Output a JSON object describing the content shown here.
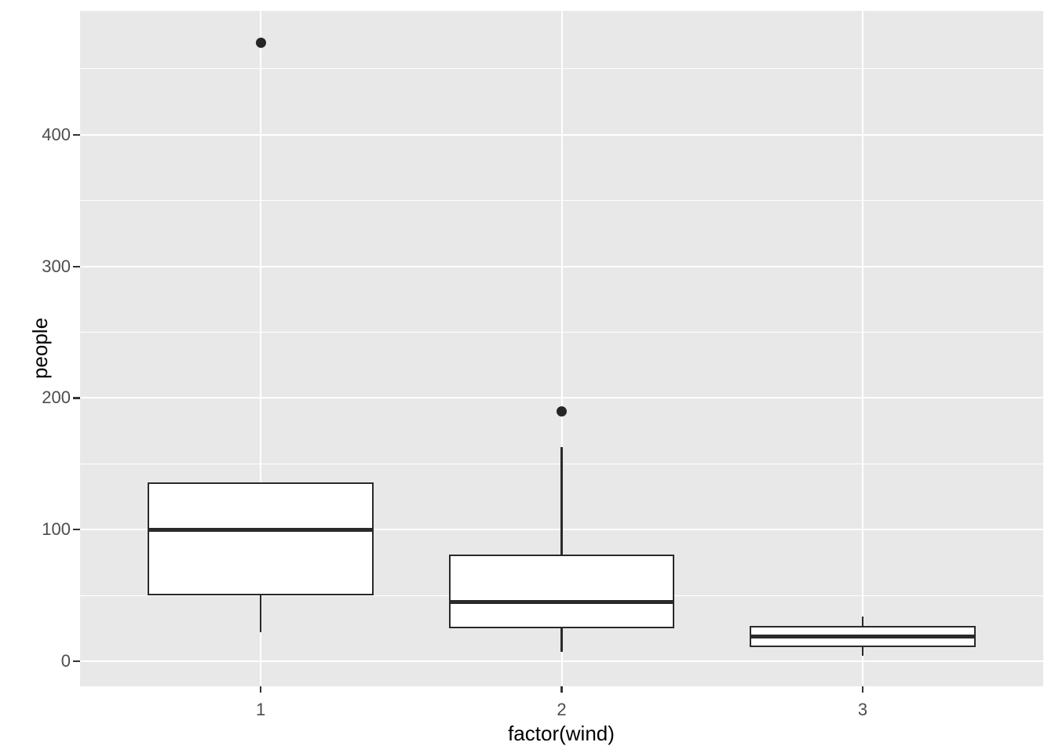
{
  "figure": {
    "background": "#FFFFFF",
    "panel_background": "#E8E8E8",
    "grid_color": "#FFFFFF",
    "box_border_color": "#2A2A2A",
    "box_fill_color": "#FFFFFF",
    "outlier_color": "#252525",
    "tick_mark_color": "#333333",
    "tick_label_color": "#4D4D4D",
    "axis_title_color": "#000000"
  },
  "chart_data": {
    "type": "boxplot",
    "title": "",
    "xlabel": "factor(wind)",
    "ylabel": "people",
    "categories": [
      "1",
      "2",
      "3"
    ],
    "y_major_ticks": [
      0,
      100,
      200,
      300,
      400
    ],
    "y_minor_gridlines": [
      50,
      150,
      250,
      350,
      450
    ],
    "ylim": [
      -19,
      494
    ],
    "grid": true,
    "legend": false,
    "series": [
      {
        "category": "1",
        "whisker_low": 22,
        "q1": 50,
        "median": 100,
        "q3": 136,
        "whisker_high": 136,
        "outliers": [
          470
        ]
      },
      {
        "category": "2",
        "whisker_low": 7,
        "q1": 25,
        "median": 45,
        "q3": 81,
        "whisker_high": 163,
        "outliers": [
          190
        ]
      },
      {
        "category": "3",
        "whisker_low": 4,
        "q1": 11,
        "median": 19,
        "q3": 27,
        "whisker_high": 34,
        "outliers": []
      }
    ]
  }
}
